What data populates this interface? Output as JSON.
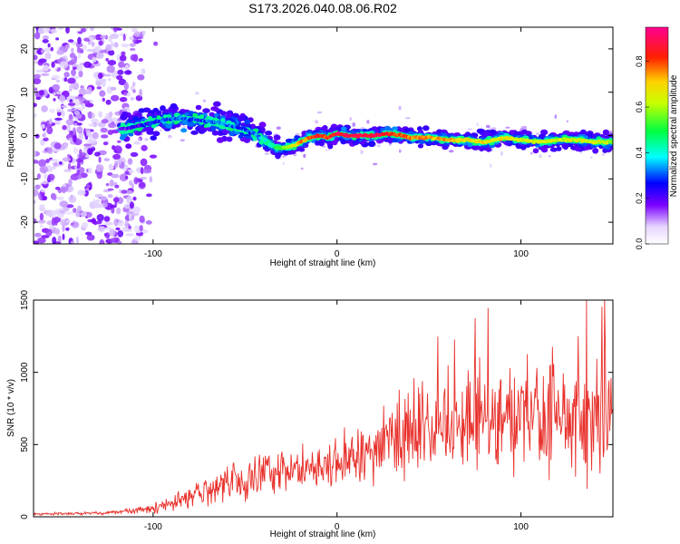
{
  "title": "S173.2026.040.08.06.R02",
  "colors": {
    "snr_line": "#e8302b",
    "axis": "#000000",
    "colormap": [
      "#e0d0ff",
      "#7a00ff",
      "#0000ff",
      "#00ffff",
      "#00ff00",
      "#ffff00",
      "#ff0000",
      "#ff0088"
    ]
  },
  "chart_data": [
    {
      "type": "heatmap",
      "title": "S173.2026.040.08.06.R02",
      "xlabel": "Height of straight line (km)",
      "ylabel": "Frequency (Hz)",
      "xlim": [
        -165,
        150
      ],
      "ylim": [
        -25,
        25
      ],
      "xticks": [
        -100,
        0,
        100
      ],
      "xtick_labels": [
        "-100",
        "0",
        "100"
      ],
      "yticks": [
        -20,
        -10,
        0,
        10,
        20
      ],
      "ytick_labels": [
        "-20",
        "-10",
        "0",
        "10",
        "20"
      ],
      "colorbar": {
        "label": "Normalized spectral amplitude",
        "range": [
          0,
          0.95
        ],
        "ticks": [
          0.0,
          0.2,
          0.4,
          0.6,
          0.8
        ],
        "tick_labels": [
          "0.0",
          "0.2",
          "0.4",
          "0.6",
          "0.8"
        ]
      },
      "ridge": {
        "x": [
          -115,
          -105,
          -95,
          -85,
          -75,
          -65,
          -55,
          -45,
          -40,
          -35,
          -30,
          -25,
          -20,
          -15,
          -10,
          -5,
          0,
          5,
          10,
          20,
          30,
          40,
          50,
          60,
          70,
          80,
          90,
          100,
          110,
          120,
          130,
          140,
          150
        ],
        "frequency": [
          1.5,
          2.5,
          3.5,
          4.0,
          3.5,
          3.0,
          2.0,
          0.5,
          -1.0,
          -2.5,
          -3.0,
          -2.5,
          -1.5,
          -0.5,
          0.0,
          -0.5,
          0.5,
          0.0,
          0.0,
          0.0,
          0.5,
          -0.5,
          -0.5,
          -1.0,
          -1.0,
          -1.5,
          -0.5,
          -1.0,
          -1.5,
          -1.0,
          -1.0,
          -1.5,
          -1.5
        ],
        "amplitude": [
          0.25,
          0.3,
          0.35,
          0.35,
          0.35,
          0.4,
          0.35,
          0.35,
          0.45,
          0.5,
          0.6,
          0.7,
          0.8,
          0.85,
          0.9,
          0.9,
          0.95,
          0.95,
          0.95,
          0.95,
          0.9,
          0.85,
          0.8,
          0.8,
          0.75,
          0.75,
          0.75,
          0.7,
          0.7,
          0.7,
          0.7,
          0.7,
          0.65
        ]
      },
      "noise_region_x": [
        -165,
        -105
      ]
    },
    {
      "type": "line",
      "xlabel": "Height of straight line (km)",
      "ylabel": "SNR (10 * v/v)",
      "xlim": [
        -165,
        150
      ],
      "ylim": [
        0,
        1500
      ],
      "xticks": [
        -100,
        0,
        100
      ],
      "xtick_labels": [
        "-100",
        "0",
        "100"
      ],
      "yticks": [
        0,
        500,
        1000,
        1500
      ],
      "ytick_labels": [
        "0",
        "500",
        "1000",
        "1500"
      ],
      "series": [
        {
          "name": "SNR",
          "envelope_x": [
            -165,
            -130,
            -110,
            -95,
            -80,
            -65,
            -55,
            -45,
            -35,
            -25,
            -15,
            -5,
            5,
            15,
            25,
            35,
            45,
            55,
            65,
            75,
            85,
            95,
            105,
            115,
            125,
            135,
            145,
            150
          ],
          "envelope_mean": [
            20,
            25,
            40,
            80,
            140,
            200,
            240,
            270,
            300,
            330,
            340,
            360,
            400,
            450,
            520,
            580,
            600,
            620,
            650,
            680,
            690,
            700,
            700,
            700,
            690,
            680,
            680,
            680
          ],
          "envelope_spread": [
            10,
            12,
            20,
            50,
            90,
            120,
            150,
            160,
            180,
            180,
            170,
            180,
            200,
            230,
            260,
            300,
            330,
            360,
            380,
            400,
            400,
            400,
            400,
            420,
            420,
            420,
            420,
            420
          ],
          "peak_value": 1500
        }
      ]
    }
  ]
}
